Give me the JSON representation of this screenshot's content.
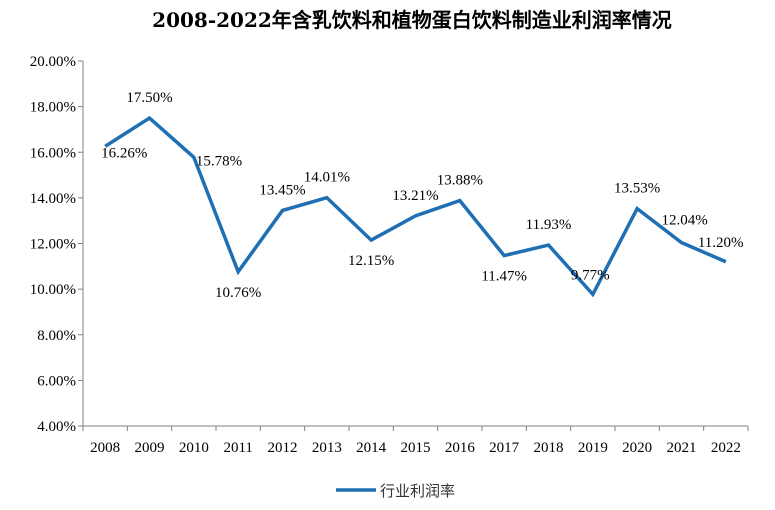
{
  "chart_data": {
    "type": "line",
    "title": "2008-2022年含乳饮料和植物蛋白饮料制造业利润率情况",
    "xlabel": "",
    "ylabel": "",
    "categories": [
      "2008",
      "2009",
      "2010",
      "2011",
      "2012",
      "2013",
      "2014",
      "2015",
      "2016",
      "2017",
      "2018",
      "2019",
      "2020",
      "2021",
      "2022"
    ],
    "series": [
      {
        "name": "行业利润率",
        "values": [
          16.26,
          17.5,
          15.78,
          10.76,
          13.45,
          14.01,
          12.15,
          13.21,
          13.88,
          11.47,
          11.93,
          9.77,
          13.53,
          12.04,
          11.2
        ],
        "labels": [
          "16.26%",
          "17.50%",
          "15.78%",
          "10.76%",
          "13.45%",
          "14.01%",
          "12.15%",
          "13.21%",
          "13.88%",
          "11.47%",
          "11.93%",
          "9.77%",
          "13.53%",
          "12.04%",
          "11.20%"
        ],
        "color": "#1f6fb4"
      }
    ],
    "ylim": [
      4,
      20
    ],
    "yticks": [
      "4.00%",
      "6.00%",
      "8.00%",
      "10.00%",
      "12.00%",
      "14.00%",
      "16.00%",
      "18.00%",
      "20.00%"
    ],
    "grid": false,
    "legend_position": "bottom"
  }
}
